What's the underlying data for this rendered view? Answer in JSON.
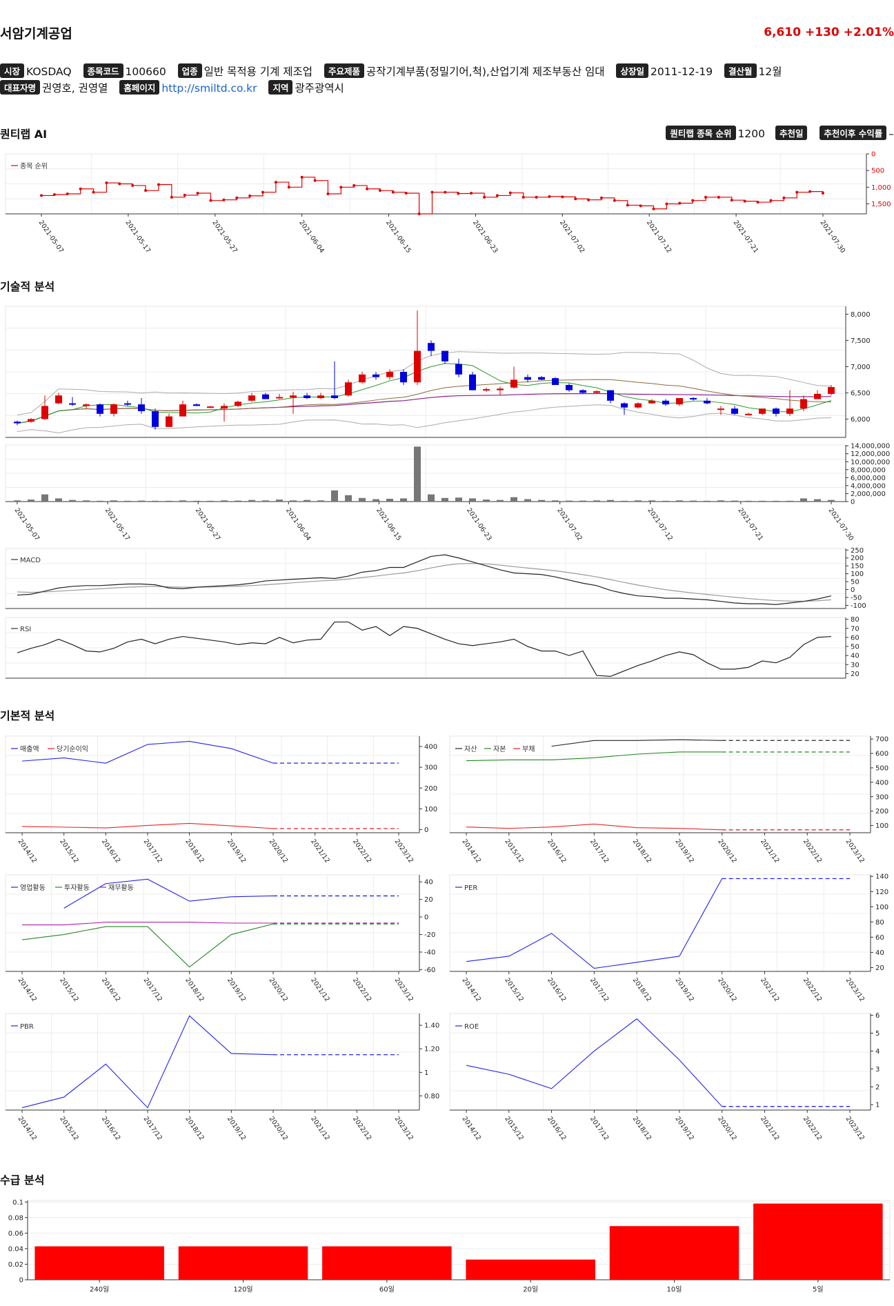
{
  "header": {
    "name": "서암기계공업",
    "price": "6,610",
    "change": "+130",
    "change_pct": "+2.01%",
    "price_color": "#e00000"
  },
  "info": {
    "market_label": "시장",
    "market": "KOSDAQ",
    "code_label": "종목코드",
    "code": "100660",
    "industry_label": "업종",
    "industry": "일반 목적용 기계 제조업",
    "products_label": "주요제품",
    "products": "공작기계부품(정밀기어,척),산업기계 제조부동산 임대",
    "listed_label": "상장일",
    "listed": "2011-12-19",
    "fiscal_label": "결산월",
    "fiscal": "12월",
    "ceo_label": "대표자명",
    "ceo": "권영호, 권영열",
    "homepage_label": "홈페이지",
    "homepage": "http://smiltd.co.kr",
    "region_label": "지역",
    "region": "광주광역시"
  },
  "sections": {
    "ai": "퀀티랩 AI",
    "tech": "기술적 분석",
    "fund": "기본적 분석",
    "flow": "수급 분석"
  },
  "ai": {
    "rank_label": "퀀티랩 종목 순위",
    "rank": "1200",
    "rec_date_label": "추천일",
    "rec_date": "",
    "rec_return_label": "추천이후 수익률",
    "rec_return": "–"
  },
  "chart_data": [
    {
      "id": "rank",
      "type": "line",
      "legend": [
        "종목 순위"
      ],
      "color": "#e00000",
      "y_ticks": [
        "0",
        "500",
        "1,000",
        "1,500"
      ],
      "ylim": [
        0,
        1800
      ],
      "y_inverted": true,
      "x_ticks": [
        "2021-05-07",
        "2021-05-17",
        "2021-05-27",
        "2021-06-04",
        "2021-06-15",
        "2021-06-23",
        "2021-07-02",
        "2021-07-12",
        "2021-07-21",
        "2021-07-30"
      ],
      "values": [
        1250,
        1220,
        1200,
        1050,
        1150,
        870,
        900,
        950,
        1100,
        920,
        1300,
        1240,
        1180,
        1400,
        1380,
        1320,
        1260,
        1150,
        850,
        1000,
        700,
        800,
        1200,
        1000,
        950,
        1050,
        1100,
        1150,
        1180,
        1800,
        1150,
        1150,
        1190,
        1180,
        1300,
        1250,
        1170,
        1300,
        1300,
        1280,
        1290,
        1350,
        1380,
        1320,
        1400,
        1540,
        1560,
        1650,
        1500,
        1480,
        1400,
        1300,
        1300,
        1390,
        1420,
        1450,
        1400,
        1320,
        1150,
        1130,
        1180
      ]
    },
    {
      "id": "price",
      "type": "candlestick",
      "y_ticks": [
        "6,000",
        "6,500",
        "7,000",
        "7,500",
        "8,000"
      ],
      "ylim": [
        5650,
        8150
      ],
      "up_color": "#e00000",
      "down_color": "#0000dd",
      "ohlc": [
        [
          5950,
          5970,
          5880,
          5920
        ],
        [
          5950,
          6020,
          5930,
          6000
        ],
        [
          6000,
          6450,
          5980,
          6250
        ],
        [
          6300,
          6500,
          6280,
          6450
        ],
        [
          6300,
          6420,
          6250,
          6280
        ],
        [
          6250,
          6300,
          6200,
          6280
        ],
        [
          6280,
          6300,
          6050,
          6100
        ],
        [
          6100,
          6300,
          6050,
          6280
        ],
        [
          6300,
          6350,
          6250,
          6280
        ],
        [
          6280,
          6400,
          6100,
          6150
        ],
        [
          6150,
          6200,
          5800,
          5850
        ],
        [
          5850,
          6100,
          5850,
          6050
        ],
        [
          6050,
          6350,
          6050,
          6280
        ],
        [
          6280,
          6300,
          6250,
          6250
        ],
        [
          6220,
          6250,
          6220,
          6240
        ],
        [
          6200,
          6300,
          5950,
          6250
        ],
        [
          6250,
          6350,
          6230,
          6330
        ],
        [
          6350,
          6500,
          6330,
          6450
        ],
        [
          6470,
          6500,
          6380,
          6380
        ],
        [
          6400,
          6480,
          6380,
          6420
        ],
        [
          6410,
          6520,
          6100,
          6450
        ],
        [
          6450,
          6500,
          6380,
          6400
        ],
        [
          6400,
          6500,
          6380,
          6450
        ],
        [
          6450,
          7100,
          6380,
          6400
        ],
        [
          6450,
          6750,
          6430,
          6700
        ],
        [
          6700,
          6900,
          6680,
          6850
        ],
        [
          6850,
          6900,
          6750,
          6800
        ],
        [
          6800,
          6950,
          6750,
          6900
        ],
        [
          6900,
          6950,
          6650,
          6700
        ],
        [
          6700,
          8070,
          6650,
          7300
        ],
        [
          7450,
          7500,
          7200,
          7300
        ],
        [
          7300,
          7300,
          7050,
          7100
        ],
        [
          7050,
          7150,
          6800,
          6850
        ],
        [
          6850,
          6900,
          6550,
          6550
        ],
        [
          6570,
          6600,
          6520,
          6570
        ],
        [
          6550,
          6620,
          6450,
          6580
        ],
        [
          6600,
          7000,
          6580,
          6750
        ],
        [
          6800,
          6850,
          6700,
          6750
        ],
        [
          6800,
          6820,
          6740,
          6750
        ],
        [
          6780,
          6800,
          6650,
          6650
        ],
        [
          6650,
          6680,
          6520,
          6550
        ],
        [
          6550,
          6570,
          6480,
          6500
        ],
        [
          6500,
          6550,
          6480,
          6530
        ],
        [
          6550,
          6550,
          6300,
          6350
        ],
        [
          6300,
          6320,
          6080,
          6220
        ],
        [
          6220,
          6320,
          6200,
          6300
        ],
        [
          6300,
          6380,
          6290,
          6350
        ],
        [
          6350,
          6380,
          6250,
          6280
        ],
        [
          6280,
          6400,
          6250,
          6400
        ],
        [
          6400,
          6420,
          6350,
          6380
        ],
        [
          6350,
          6400,
          6280,
          6300
        ],
        [
          6200,
          6250,
          6080,
          6200
        ],
        [
          6200,
          6250,
          6080,
          6100
        ],
        [
          6100,
          6120,
          6080,
          6100
        ],
        [
          6100,
          6200,
          6080,
          6200
        ],
        [
          6200,
          6220,
          6050,
          6100
        ],
        [
          6100,
          6550,
          6060,
          6200
        ],
        [
          6200,
          6450,
          6150,
          6380
        ],
        [
          6380,
          6550,
          6380,
          6480
        ],
        [
          6480,
          6650,
          6450,
          6610
        ]
      ]
    },
    {
      "id": "volume",
      "type": "bar",
      "y_ticks": [
        "0",
        "2,000,000",
        "4,000,000",
        "6,000,000",
        "8,000,000",
        "10,000,000",
        "12,000,000",
        "14,000,000"
      ],
      "ylim": [
        0,
        14200000
      ],
      "values": [
        300000,
        500000,
        1800000,
        800000,
        400000,
        300000,
        200000,
        300000,
        200000,
        250000,
        200000,
        200000,
        300000,
        200000,
        200000,
        300000,
        250000,
        400000,
        300000,
        500000,
        300000,
        400000,
        300000,
        2800000,
        1600000,
        900000,
        600000,
        700000,
        800000,
        13800000,
        1800000,
        900000,
        1000000,
        800000,
        500000,
        400000,
        1100000,
        600000,
        400000,
        300000,
        250000,
        250000,
        300000,
        400000,
        200000,
        300000,
        300000,
        200000,
        300000,
        250000,
        200000,
        300000,
        250000,
        200000,
        200000,
        200000,
        200000,
        800000,
        600000,
        400000
      ]
    },
    {
      "id": "macd",
      "type": "line",
      "legend": [
        "MACD"
      ],
      "y_ticks": [
        "-100",
        "-50",
        "0",
        "50",
        "100",
        "150",
        "200",
        "250"
      ],
      "ylim": [
        -120,
        260
      ],
      "macd": [
        -35,
        -30,
        -10,
        10,
        20,
        25,
        25,
        30,
        35,
        35,
        30,
        10,
        5,
        15,
        20,
        25,
        30,
        40,
        55,
        60,
        65,
        70,
        75,
        70,
        85,
        110,
        120,
        140,
        140,
        175,
        210,
        220,
        200,
        175,
        150,
        125,
        105,
        100,
        95,
        80,
        60,
        40,
        25,
        -5,
        -25,
        -40,
        -45,
        -55,
        -55,
        -60,
        -65,
        -75,
        -85,
        -90,
        -90,
        -95,
        -85,
        -75,
        -60,
        -40
      ],
      "signal": [
        -15,
        -18,
        -15,
        -10,
        -5,
        0,
        5,
        10,
        15,
        18,
        20,
        17,
        15,
        15,
        16,
        18,
        21,
        25,
        30,
        36,
        43,
        49,
        55,
        59,
        66,
        76,
        85,
        96,
        105,
        119,
        137,
        153,
        163,
        165,
        162,
        155,
        145,
        136,
        128,
        119,
        107,
        94,
        80,
        63,
        45,
        28,
        13,
        -1,
        -12,
        -22,
        -31,
        -40,
        -49,
        -57,
        -64,
        -70,
        -73,
        -74,
        -71,
        -65
      ]
    },
    {
      "id": "rsi",
      "type": "line",
      "legend": [
        "RSI"
      ],
      "y_ticks": [
        "20",
        "30",
        "40",
        "50",
        "60",
        "70",
        "80"
      ],
      "ylim": [
        15,
        82
      ],
      "values": [
        43,
        48,
        52,
        58,
        52,
        45,
        44,
        48,
        55,
        58,
        53,
        58,
        61,
        59,
        57,
        55,
        52,
        54,
        53,
        60,
        54,
        57,
        58,
        77,
        77,
        68,
        72,
        62,
        72,
        70,
        64,
        58,
        53,
        51,
        53,
        55,
        58,
        50,
        45,
        45,
        40,
        45,
        18,
        17,
        23,
        29,
        34,
        40,
        44,
        41,
        32,
        25,
        25,
        27,
        34,
        32,
        38,
        52,
        60,
        61
      ]
    },
    {
      "id": "sales",
      "type": "line",
      "legend": [
        "매출액",
        "당기순이익"
      ],
      "x_ticks": [
        "2014/12",
        "2015/12",
        "2016/12",
        "2017/12",
        "2018/12",
        "2019/12",
        "2020/12",
        "2021/12",
        "2022/12",
        "2023/12"
      ],
      "y_ticks": [
        "0",
        "100",
        "200",
        "300",
        "400"
      ],
      "ylim": [
        -15,
        450
      ],
      "series": [
        {
          "name": "매출액",
          "color": "#2222ee",
          "values": [
            330,
            345,
            320,
            410,
            425,
            390,
            320,
            null,
            null,
            320
          ]
        },
        {
          "name": "당기순이익",
          "color": "#ee2222",
          "values": [
            15,
            12,
            8,
            20,
            30,
            18,
            5,
            null,
            null,
            5
          ]
        }
      ]
    },
    {
      "id": "assets",
      "type": "line",
      "legend": [
        "자산",
        "자본",
        "부채"
      ],
      "x_ticks": [
        "2014/12",
        "2015/12",
        "2016/12",
        "2017/12",
        "2018/12",
        "2019/12",
        "2020/12",
        "2021/12",
        "2022/12",
        "2023/12"
      ],
      "y_ticks": [
        "100",
        "200",
        "300",
        "400",
        "500",
        "600",
        "700"
      ],
      "ylim": [
        50,
        720
      ],
      "series": [
        {
          "name": "자산",
          "color": "#222222",
          "values": [
            null,
            null,
            650,
            690,
            690,
            695,
            690,
            null,
            null,
            690
          ]
        },
        {
          "name": "자본",
          "color": "#228822",
          "values": [
            550,
            555,
            555,
            570,
            595,
            610,
            610,
            null,
            null,
            610
          ]
        },
        {
          "name": "부채",
          "color": "#ee2222",
          "values": [
            90,
            80,
            90,
            110,
            85,
            80,
            70,
            null,
            null,
            70
          ]
        }
      ]
    },
    {
      "id": "cashflow",
      "type": "line",
      "legend": [
        "영업활동",
        "투자활동",
        "재무활동"
      ],
      "x_ticks": [
        "2014/12",
        "2015/12",
        "2016/12",
        "2017/12",
        "2018/12",
        "2019/12",
        "2020/12",
        "2021/12",
        "2022/12",
        "2023/12"
      ],
      "y_ticks": [
        "-60",
        "-40",
        "-20",
        "0",
        "20",
        "40"
      ],
      "ylim": [
        -62,
        48
      ],
      "series": [
        {
          "name": "영업활동",
          "color": "#2222ee",
          "values": [
            null,
            10,
            38,
            43,
            18,
            23,
            24,
            null,
            null,
            24
          ]
        },
        {
          "name": "투자활동",
          "color": "#228822",
          "values": [
            -26,
            -20,
            -11,
            -11,
            -57,
            -20,
            -8,
            null,
            null,
            -8
          ]
        },
        {
          "name": "재무활동",
          "color": "#aa22aa",
          "values": [
            -9,
            -9,
            -6,
            -6,
            -6,
            -7,
            -7,
            null,
            null,
            -7
          ]
        }
      ]
    },
    {
      "id": "per",
      "type": "line",
      "legend": [
        "PER"
      ],
      "x_ticks": [
        "2014/12",
        "2015/12",
        "2016/12",
        "2017/12",
        "2018/12",
        "2019/12",
        "2020/12",
        "2021/12",
        "2022/12",
        "2023/12"
      ],
      "y_ticks": [
        "20",
        "40",
        "60",
        "80",
        "100",
        "120",
        "140"
      ],
      "ylim": [
        15,
        142
      ],
      "series": [
        {
          "name": "PER",
          "color": "#2222ee",
          "values": [
            28,
            35,
            65,
            19,
            27,
            35,
            137,
            null,
            null,
            137
          ]
        }
      ]
    },
    {
      "id": "pbr",
      "type": "line",
      "legend": [
        "PBR"
      ],
      "x_ticks": [
        "2014/12",
        "2015/12",
        "2016/12",
        "2017/12",
        "2018/12",
        "2019/12",
        "2020/12",
        "2021/12",
        "2022/12",
        "2023/12"
      ],
      "y_ticks": [
        "0.80",
        "1",
        "1.20",
        "1.40"
      ],
      "ylim": [
        0.68,
        1.5
      ],
      "series": [
        {
          "name": "PBR",
          "color": "#2222ee",
          "values": [
            0.7,
            0.79,
            1.07,
            0.7,
            1.48,
            1.16,
            1.15,
            null,
            null,
            1.15
          ]
        }
      ]
    },
    {
      "id": "roe",
      "type": "line",
      "legend": [
        "ROE"
      ],
      "x_ticks": [
        "2014/12",
        "2015/12",
        "2016/12",
        "2017/12",
        "2018/12",
        "2019/12",
        "2020/12",
        "2021/12",
        "2022/12",
        "2023/12"
      ],
      "y_ticks": [
        "1",
        "2",
        "3",
        "4",
        "5",
        "6"
      ],
      "ylim": [
        0.7,
        6.1
      ],
      "series": [
        {
          "name": "ROE",
          "color": "#2222ee",
          "values": [
            3.2,
            2.7,
            1.9,
            4.0,
            5.8,
            3.5,
            0.9,
            null,
            null,
            0.9
          ]
        }
      ]
    },
    {
      "id": "flow",
      "type": "bar",
      "categories": [
        "240일",
        "120일",
        "60일",
        "20일",
        "10일",
        "5일"
      ],
      "values": [
        0.043,
        0.043,
        0.043,
        0.026,
        0.069,
        0.098
      ],
      "y_ticks": [
        "0",
        "0.02",
        "0.04",
        "0.06",
        "0.08",
        "0.1"
      ],
      "ylim": [
        0,
        0.102
      ],
      "color": "#ff0000"
    }
  ]
}
